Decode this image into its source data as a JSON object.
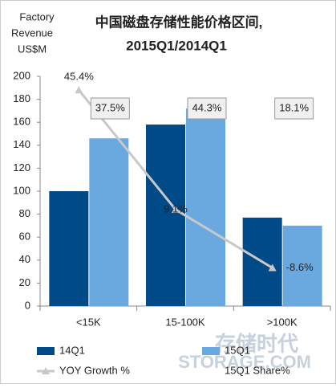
{
  "chart_data": {
    "type": "bar",
    "title": [
      "中国磁盘存储性能价格区间,",
      "2015Q1/2014Q1"
    ],
    "ylabel": [
      "Factory",
      "Revenue",
      "US$M"
    ],
    "categories": [
      "<15K",
      "15-100K",
      ">100K"
    ],
    "series": [
      {
        "name": "14Q1",
        "color": "#004a87",
        "values": [
          100,
          158,
          77
        ]
      },
      {
        "name": "15Q1",
        "color": "#6aa9e0",
        "values": [
          146,
          172,
          70
        ]
      },
      {
        "name": "YOY Growth %",
        "type": "line",
        "axis": "y2",
        "color": "#c8c8c8",
        "values": [
          45.4,
          9.1,
          -8.6
        ],
        "value_labels": [
          "45.4%",
          "9.1%",
          "-8.6%"
        ]
      },
      {
        "name": "15Q1 Share%",
        "type": "label",
        "values": [
          37.5,
          44.3,
          18.1
        ],
        "value_labels": [
          "37.5%",
          "44.3%",
          "18.1%"
        ]
      }
    ],
    "ylim": [
      0,
      200
    ],
    "yticks": [
      0,
      20,
      40,
      60,
      80,
      100,
      120,
      140,
      160,
      180,
      200
    ],
    "y2lim": [
      -20.2,
      49.6
    ],
    "watermark": [
      "存储时代",
      "STORAGE.COM"
    ]
  }
}
